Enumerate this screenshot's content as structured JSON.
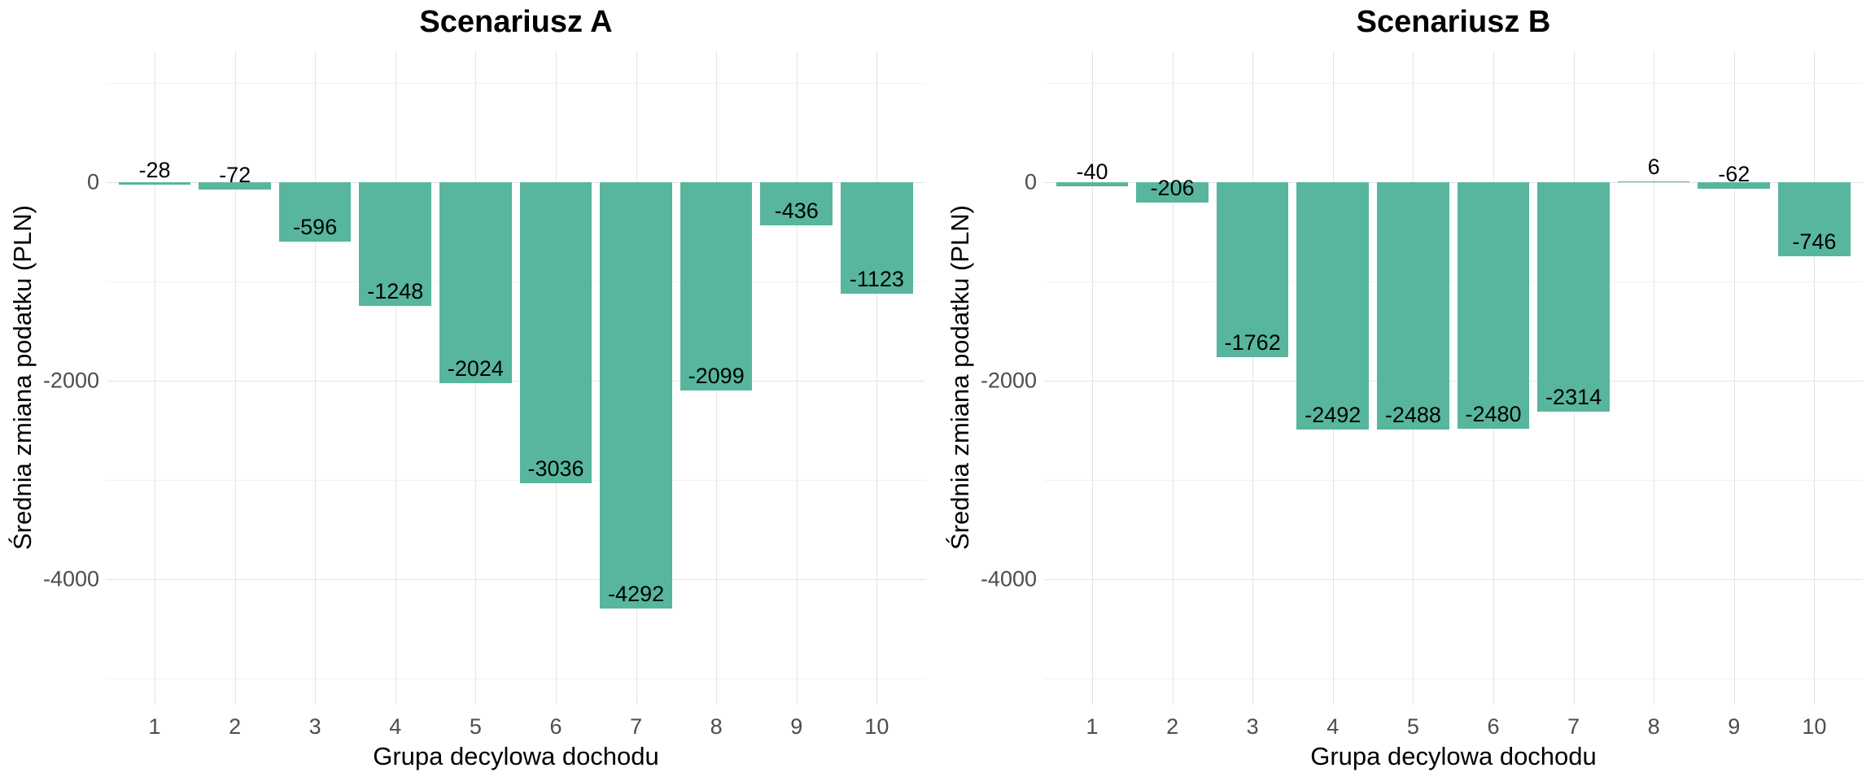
{
  "figure": {
    "background_color": "#ffffff",
    "bar_color": "#57b69d",
    "gridline_major_color": "#e3e3e3",
    "gridline_minor_color": "#f2f2f2",
    "tick_label_color": "#4d4d4d",
    "text_color": "#000000"
  },
  "axes_shared": {
    "x_title": "Grupa decylowa dochodu",
    "y_title": "Średnia zmiana podatku (PLN)",
    "x_tick_labels": [
      "1",
      "2",
      "3",
      "4",
      "5",
      "6",
      "7",
      "8",
      "9",
      "10"
    ],
    "y_tick_labels": [
      "0",
      "-2000",
      "-4000"
    ],
    "y_tick_values": [
      0,
      -2000,
      -4000
    ],
    "y_minor_grid_values": [
      1000,
      -1000,
      -3000,
      -5000
    ]
  },
  "chart_data": [
    {
      "type": "bar",
      "title": "Scenariusz A",
      "categories": [
        1,
        2,
        3,
        4,
        5,
        6,
        7,
        8,
        9,
        10
      ],
      "values": [
        -28,
        -72,
        -596,
        -1248,
        -2024,
        -3036,
        -4292,
        -2099,
        -436,
        -1123
      ],
      "bar_labels": [
        "-28",
        "-72",
        "-596",
        "-1248",
        "-2024",
        "-3036",
        "-4292",
        "-2099",
        "-436",
        "-1123"
      ],
      "xlabel": "Grupa decylowa dochodu",
      "ylabel": "Średnia zmiana podatku (PLN)",
      "ylim": [
        -5260,
        1320
      ],
      "grid": true,
      "legend": false
    },
    {
      "type": "bar",
      "title": "Scenariusz B",
      "categories": [
        1,
        2,
        3,
        4,
        5,
        6,
        7,
        8,
        9,
        10
      ],
      "values": [
        -40,
        -206,
        -1762,
        -2492,
        -2488,
        -2480,
        -2314,
        6,
        -62,
        -746
      ],
      "bar_labels": [
        "-40",
        "-206",
        "-1762",
        "-2492",
        "-2488",
        "-2480",
        "-2314",
        "6",
        "-62",
        "-746"
      ],
      "xlabel": "Grupa decylowa dochodu",
      "ylabel": "Średnia zmiana podatku (PLN)",
      "ylim": [
        -5260,
        1320
      ],
      "grid": true,
      "legend": false
    }
  ]
}
